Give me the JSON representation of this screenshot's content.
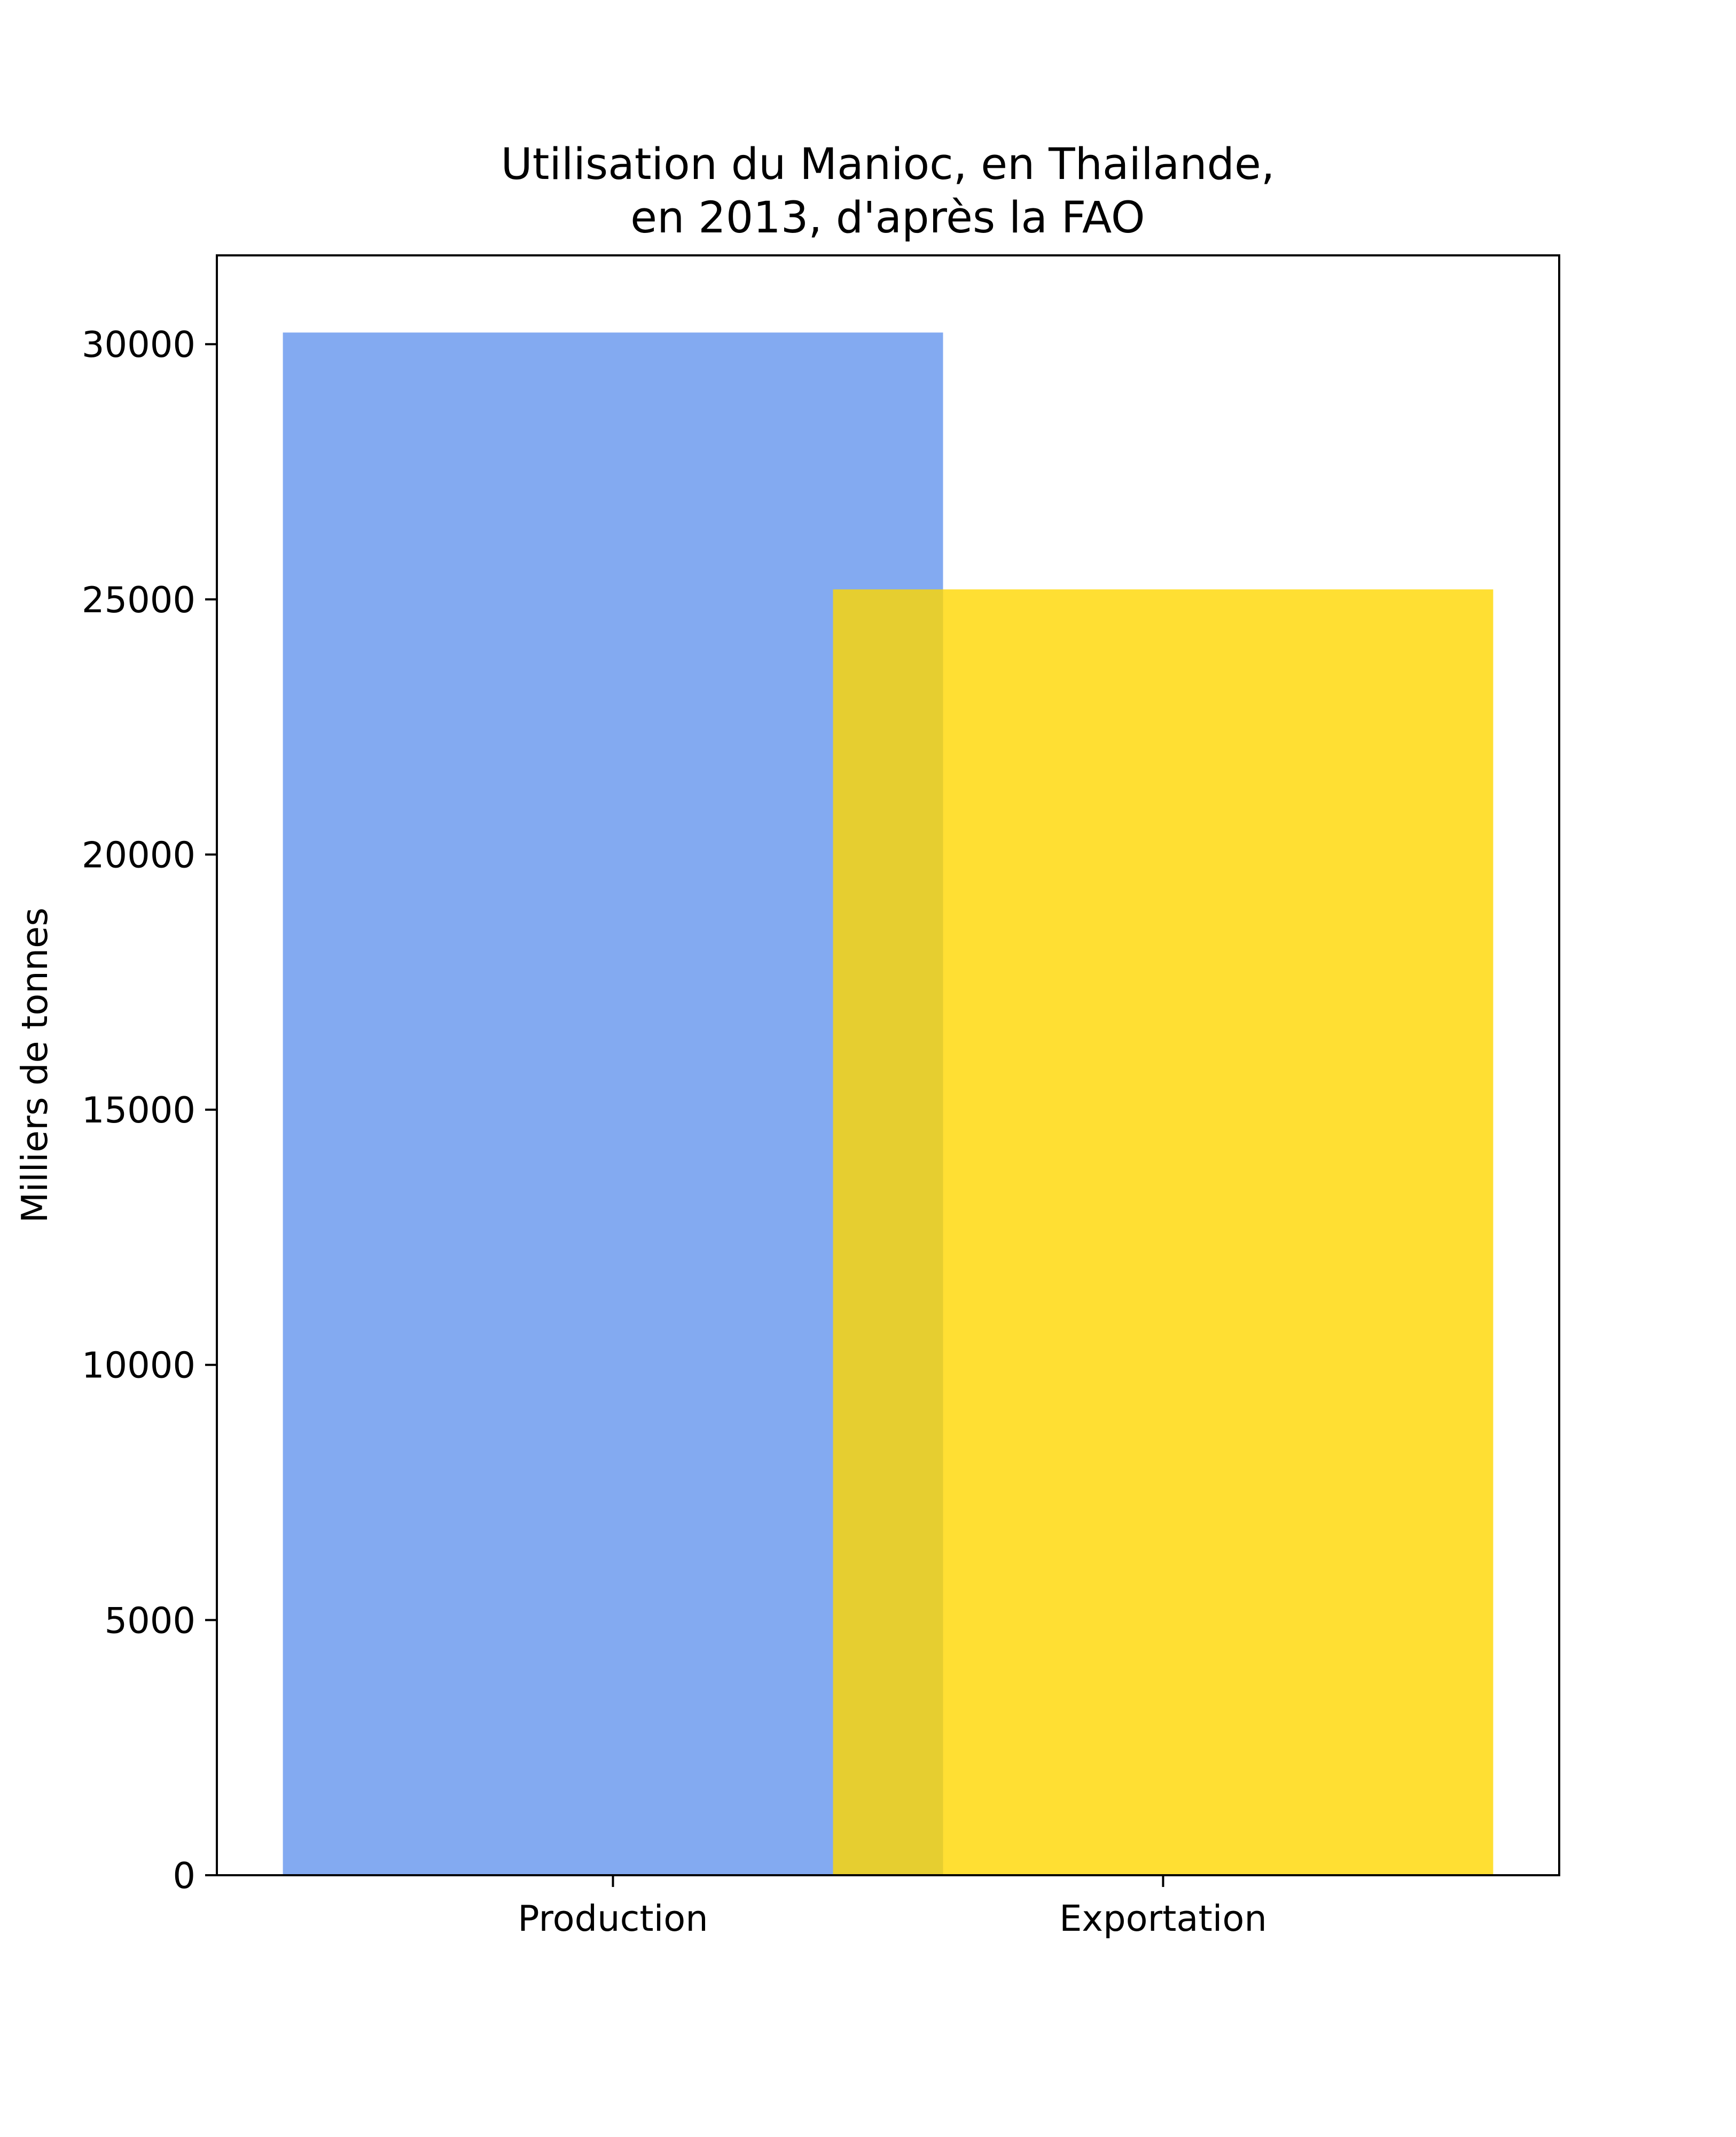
{
  "chart_data": {
    "type": "bar",
    "title": [
      "Utilisation du Manioc, en Thailande,",
      "en 2013, d'après la FAO"
    ],
    "xlabel": "",
    "ylabel": "Milliers de tonnes",
    "categories": [
      "Production",
      "Exportation"
    ],
    "values": [
      30228,
      25195
    ],
    "colors": [
      "#6495ED",
      "#FFD700"
    ],
    "opacity": 0.8,
    "bar_width": 1.2,
    "xlim": [
      -0.72,
      1.72
    ],
    "ylim": [
      0,
      31740
    ],
    "yticks": [
      0,
      5000,
      10000,
      15000,
      20000,
      25000,
      30000
    ],
    "grid": false,
    "legend": "none"
  }
}
